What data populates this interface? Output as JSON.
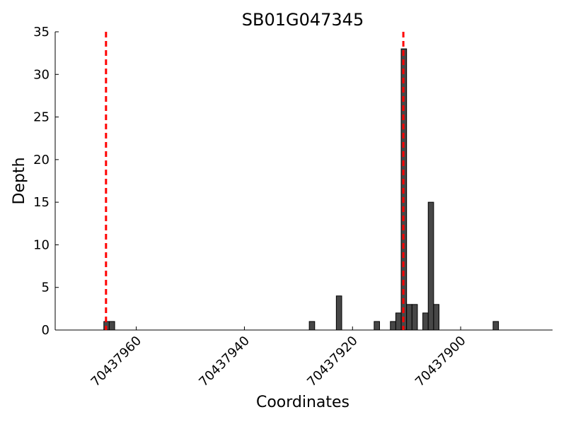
{
  "chart_data": {
    "type": "bar",
    "title": "SB01G047345",
    "x_label": "Coordinates",
    "y_label": "Depth",
    "x": [
      70437966,
      70437965,
      70437928,
      70437923,
      70437916,
      70437913,
      70437912,
      70437911,
      70437910,
      70437909,
      70437907,
      70437906,
      70437905,
      70437894
    ],
    "values": [
      1,
      1,
      1,
      4,
      1,
      1,
      2,
      33,
      3,
      3,
      2,
      15,
      3,
      1
    ],
    "color": "#474747",
    "xlim": [
      70437975,
      70437883
    ],
    "xticks": [
      70437960,
      70437940,
      70437920,
      70437900
    ],
    "ylim": [
      0,
      35
    ],
    "yticks": [
      0,
      5,
      10,
      15,
      20,
      25,
      30,
      35
    ],
    "vlines": [
      70437965.6,
      70437910.6
    ],
    "vline_color": "#ff0000"
  }
}
